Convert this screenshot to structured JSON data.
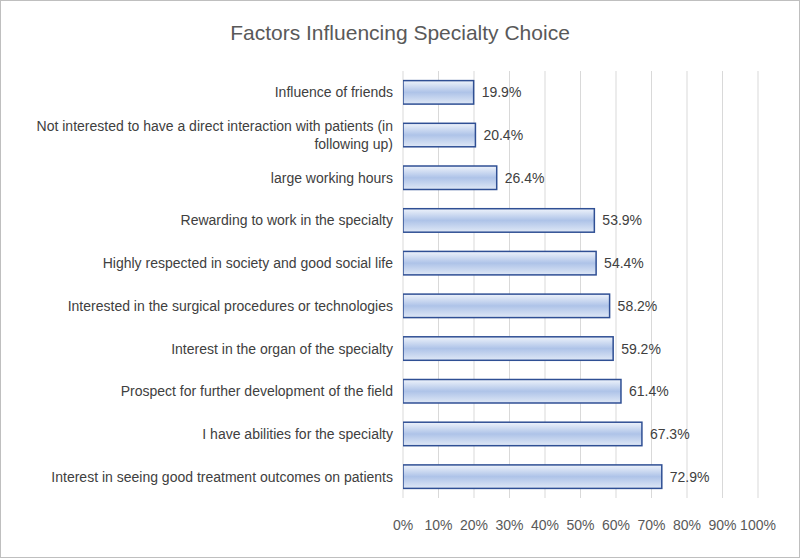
{
  "chart_data": {
    "type": "bar",
    "title": "Factors Influencing Specialty Choice",
    "orientation": "horizontal",
    "categories": [
      "Influence of friends",
      "Not interested to have a direct interaction with patients (in following up)",
      "large working hours",
      "Rewarding to work in the specialty",
      "Highly respected in society and good social life",
      "Interested in the surgical procedures or technologies",
      "Interest in the organ of the specialty",
      "Prospect for further development of the field",
      "I have abilities for the specialty",
      "Interest in seeing good treatment outcomes on patients"
    ],
    "values": [
      19.9,
      20.4,
      26.4,
      53.9,
      54.4,
      58.2,
      59.2,
      61.4,
      67.3,
      72.9
    ],
    "value_labels": [
      "19.9%",
      "20.4%",
      "26.4%",
      "53.9%",
      "54.4%",
      "58.2%",
      "59.2%",
      "61.4%",
      "67.3%",
      "72.9%"
    ],
    "color": "#aec3e8",
    "xlim": [
      0,
      100
    ],
    "xticks": [
      {
        "value": 0,
        "label": "0%"
      },
      {
        "value": 10,
        "label": "10%"
      },
      {
        "value": 20,
        "label": "20%"
      },
      {
        "value": 30,
        "label": "30%"
      },
      {
        "value": 40,
        "label": "40%"
      },
      {
        "value": 50,
        "label": "50%"
      },
      {
        "value": 60,
        "label": "60%"
      },
      {
        "value": 70,
        "label": "70%"
      },
      {
        "value": 80,
        "label": "80%"
      },
      {
        "value": 90,
        "label": "90%"
      },
      {
        "value": 100,
        "label": "100%"
      }
    ],
    "grid": true,
    "data_labels": true
  }
}
